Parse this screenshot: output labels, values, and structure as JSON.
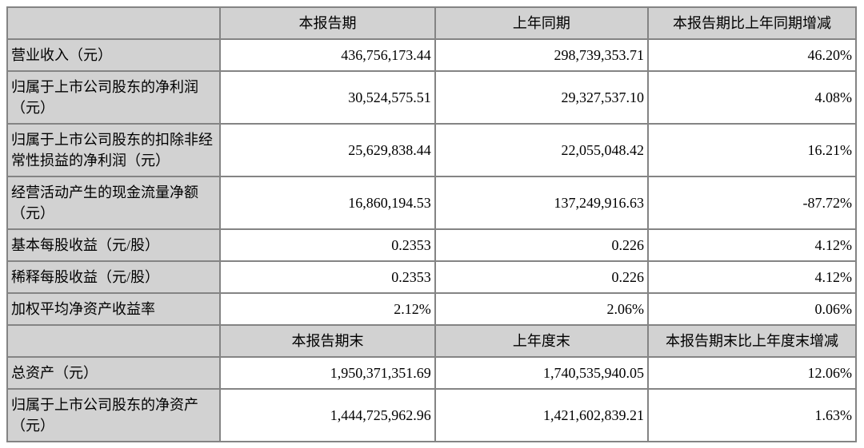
{
  "colors": {
    "cell_gray": "#d2d2d2",
    "border_gray": "#848484",
    "text": "#000000",
    "background": "#ffffff"
  },
  "table": {
    "section_period": {
      "columns": [
        "本报告期",
        "上年同期",
        "本报告期比上年同期增减"
      ],
      "rows": [
        {
          "label": "营业收入（元）",
          "current": "436,756,173.44",
          "prior": "298,739,353.71",
          "change": "46.20%"
        },
        {
          "label": "归属于上市公司股东的净利润（元）",
          "current": "30,524,575.51",
          "prior": "29,327,537.10",
          "change": "4.08%"
        },
        {
          "label": "归属于上市公司股东的扣除非经常性损益的净利润（元）",
          "current": "25,629,838.44",
          "prior": "22,055,048.42",
          "change": "16.21%"
        },
        {
          "label": "经营活动产生的现金流量净额（元）",
          "current": "16,860,194.53",
          "prior": "137,249,916.63",
          "change": "-87.72%"
        },
        {
          "label": "基本每股收益（元/股）",
          "current": "0.2353",
          "prior": "0.226",
          "change": "4.12%"
        },
        {
          "label": "稀释每股收益（元/股）",
          "current": "0.2353",
          "prior": "0.226",
          "change": "4.12%"
        },
        {
          "label": "加权平均净资产收益率",
          "current": "2.12%",
          "prior": "2.06%",
          "change": "0.06%"
        }
      ]
    },
    "section_end_of_period": {
      "columns": [
        "本报告期末",
        "上年度末",
        "本报告期末比上年度末增减"
      ],
      "rows": [
        {
          "label": "总资产（元）",
          "current": "1,950,371,351.69",
          "prior": "1,740,535,940.05",
          "change": "12.06%"
        },
        {
          "label": "归属于上市公司股东的净资产（元）",
          "current": "1,444,725,962.96",
          "prior": "1,421,602,839.21",
          "change": "1.63%"
        }
      ]
    }
  }
}
